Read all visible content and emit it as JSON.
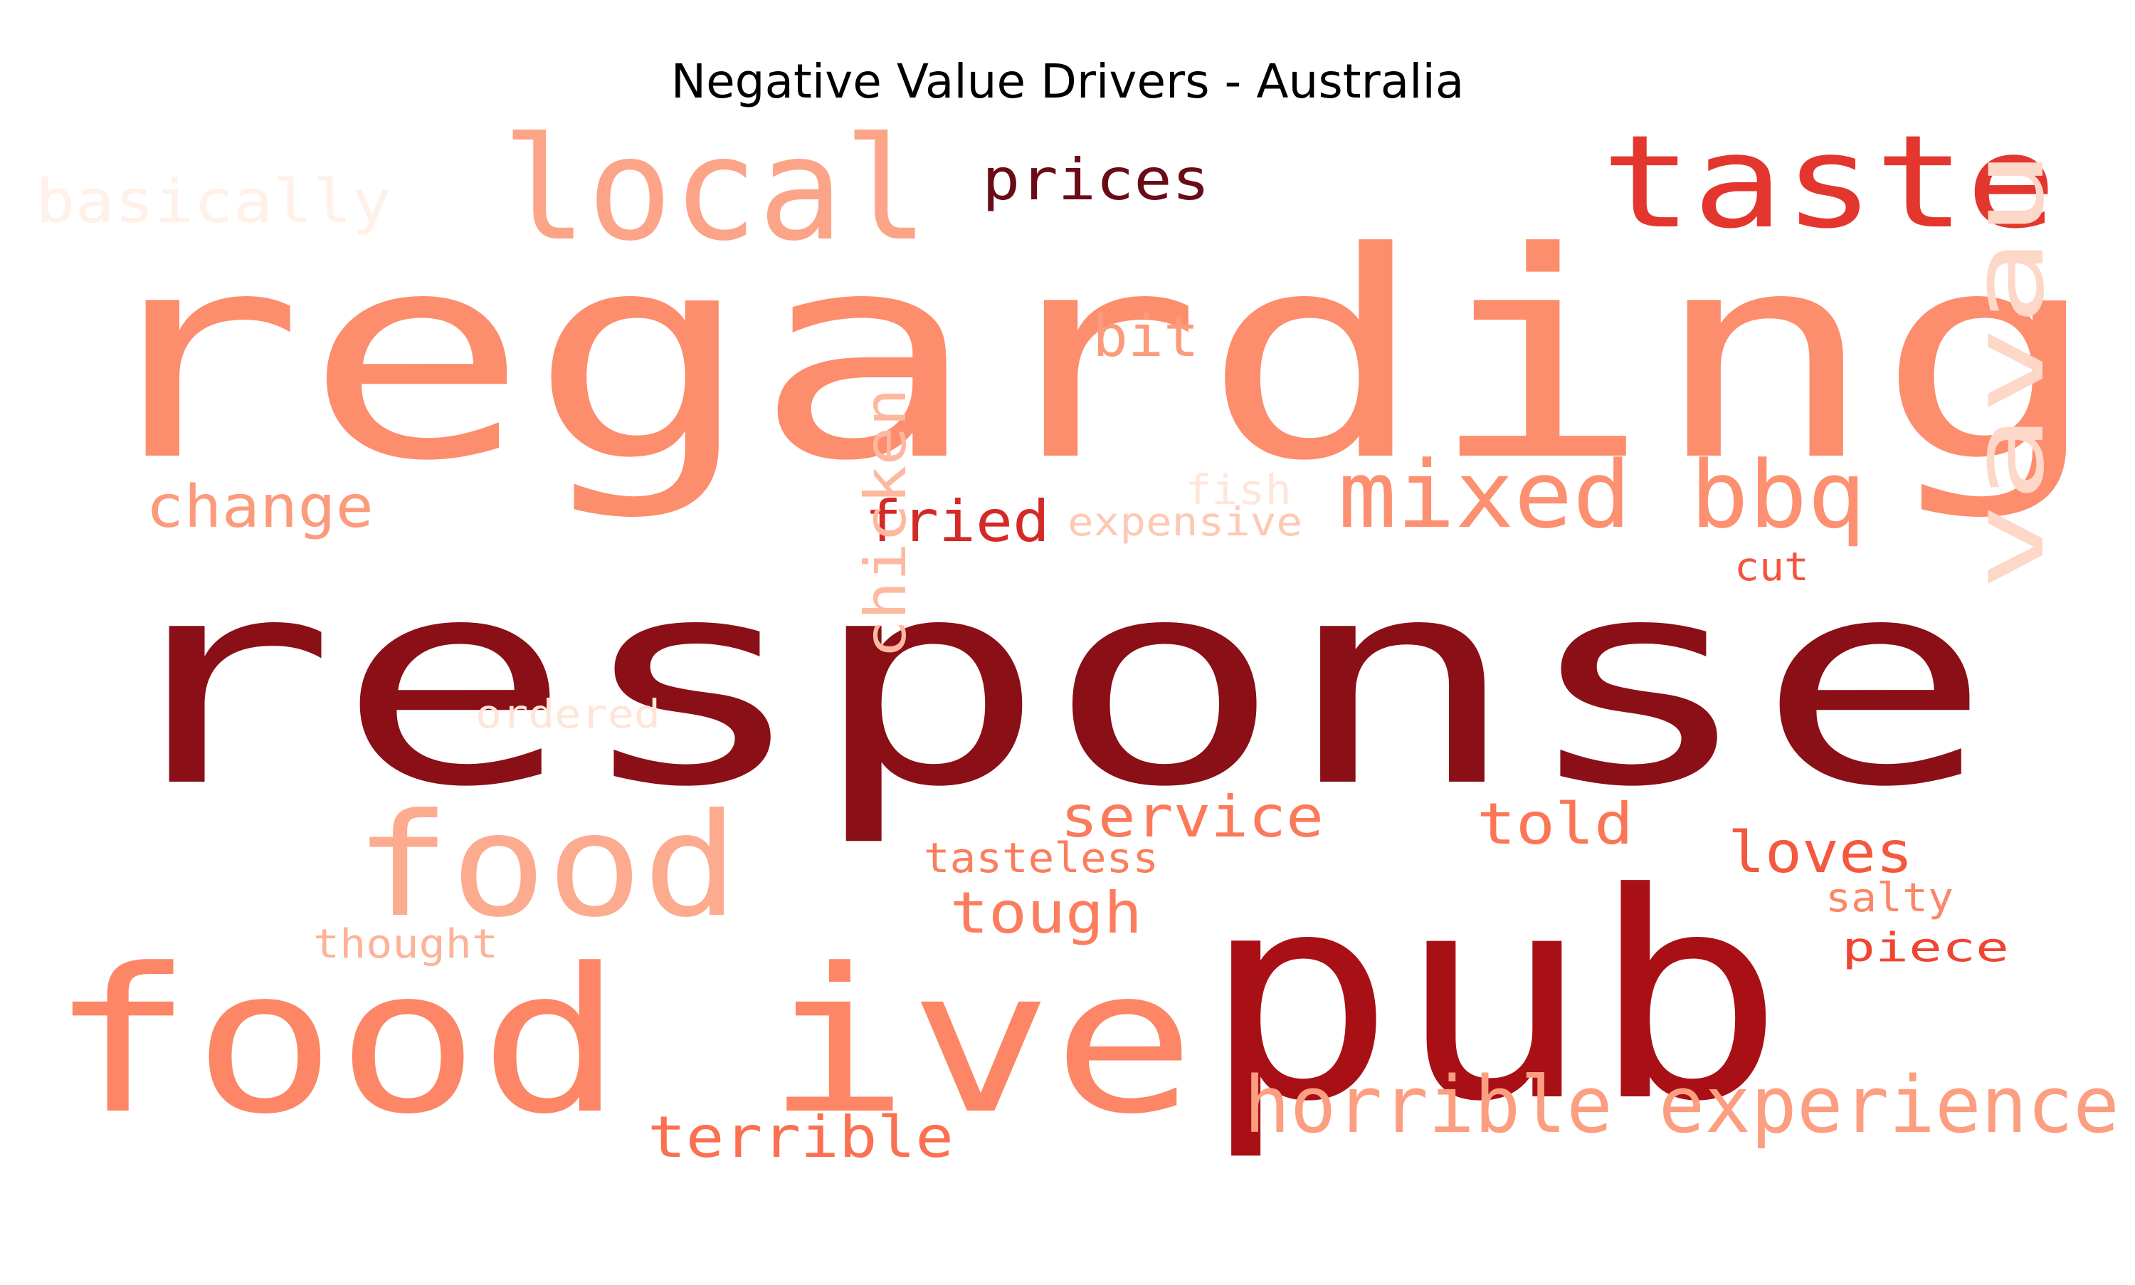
{
  "chart_data": {
    "type": "wordcloud",
    "title": "Negative Value Drivers - Australia",
    "colormap": "Reds",
    "words": [
      {
        "text": "regarding",
        "color": "#fc8d6d"
      },
      {
        "text": "response",
        "color": "#8a0f16"
      },
      {
        "text": "pub",
        "color": "#a81016"
      },
      {
        "text": "food ive",
        "color": "#fc8665"
      },
      {
        "text": "local",
        "color": "#fca487"
      },
      {
        "text": "taste",
        "color": "#e3362e"
      },
      {
        "text": "food",
        "color": "#fcab8f"
      },
      {
        "text": "horrible experience",
        "color": "#fc9e80"
      },
      {
        "text": "vavau",
        "color": "#fdd7c7"
      },
      {
        "text": "mixed bbq",
        "color": "#fc9070"
      },
      {
        "text": "prices",
        "color": "#6a0b18"
      },
      {
        "text": "basically",
        "color": "#fff0e8"
      },
      {
        "text": "bit",
        "color": "#fc9b7c"
      },
      {
        "text": "change",
        "color": "#fc9b7c"
      },
      {
        "text": "fried",
        "color": "#d42a27"
      },
      {
        "text": "fish",
        "color": "#fee6da"
      },
      {
        "text": "expensive",
        "color": "#fdc9b4"
      },
      {
        "text": "cut",
        "color": "#f4543e"
      },
      {
        "text": "chicken",
        "color": "#fdb99f"
      },
      {
        "text": "ordered",
        "color": "#fee5d8"
      },
      {
        "text": "service",
        "color": "#fb7a5a"
      },
      {
        "text": "told",
        "color": "#fb7656"
      },
      {
        "text": "tasteless",
        "color": "#fb7e5e"
      },
      {
        "text": "loves",
        "color": "#f4593f"
      },
      {
        "text": "tough",
        "color": "#fb7d5d"
      },
      {
        "text": "salty",
        "color": "#fb8767"
      },
      {
        "text": "thought",
        "color": "#fcb398"
      },
      {
        "text": "piece",
        "color": "#ef4533"
      },
      {
        "text": "terrible",
        "color": "#fb7050"
      }
    ]
  }
}
